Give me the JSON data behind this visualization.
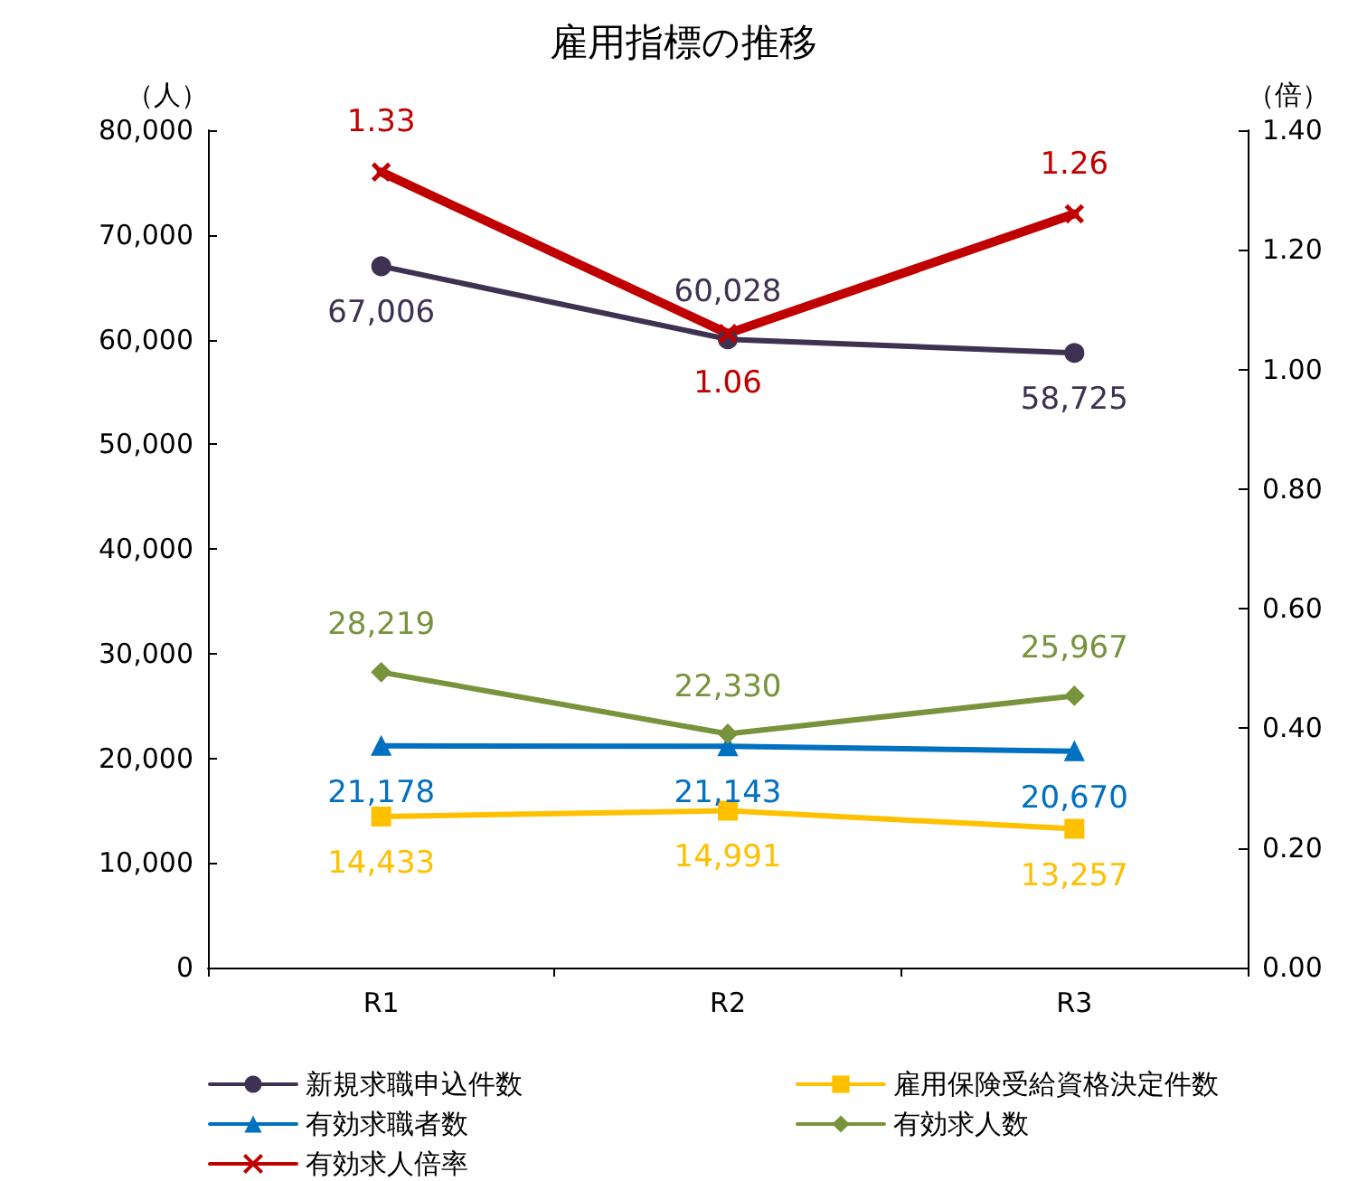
{
  "chart_data": {
    "type": "line",
    "title": "雇用指標の推移",
    "ylabel": "（人）",
    "y2label": "（倍）",
    "categories": [
      "R1",
      "R2",
      "R3"
    ],
    "series": [
      {
        "name": "新規求職申込件数",
        "color": "#3f3151",
        "values": [
          67006,
          60028,
          58725
        ],
        "value_labels": [
          "67,006",
          "60,028",
          "58,725"
        ],
        "marker": "circle"
      },
      {
        "name": "雇用保険受給資格決定件数",
        "color": "#ffc000",
        "values": [
          14433,
          14991,
          13257
        ],
        "value_labels": [
          "14,433",
          "14,991",
          "13,257"
        ],
        "marker": "square"
      },
      {
        "name": "有効求職者数",
        "color": "#0070c0",
        "values": [
          21178,
          21143,
          20670
        ],
        "value_labels": [
          "21,178",
          "21,143",
          "20,670"
        ],
        "marker": "triangle"
      },
      {
        "name": "有効求人数",
        "color": "#77933c",
        "values": [
          28219,
          22330,
          25967
        ],
        "value_labels": [
          "28,219",
          "22,330",
          "25,967"
        ],
        "marker": "diamond"
      },
      {
        "name": "有効求人倍率",
        "color": "#c00000",
        "values": [
          1.33,
          1.06,
          1.26
        ],
        "value_labels": [
          "1.33",
          "1.06",
          "1.26"
        ],
        "marker": "cross",
        "axis": "y2"
      }
    ],
    "ylim": [
      0,
      80000
    ],
    "yticks": [
      {
        "value": 0,
        "label": "0"
      },
      {
        "value": 10000,
        "label": "10,000"
      },
      {
        "value": 20000,
        "label": "20,000"
      },
      {
        "value": 30000,
        "label": "30,000"
      },
      {
        "value": 40000,
        "label": "40,000"
      },
      {
        "value": 50000,
        "label": "50,000"
      },
      {
        "value": 60000,
        "label": "60,000"
      },
      {
        "value": 70000,
        "label": "70,000"
      },
      {
        "value": 80000,
        "label": "80,000"
      }
    ],
    "y2lim": [
      0,
      1.4
    ],
    "y2ticks": [
      {
        "value": 0,
        "label": "0.00"
      },
      {
        "value": 0.2,
        "label": "0.20"
      },
      {
        "value": 0.4,
        "label": "0.40"
      },
      {
        "value": 0.6,
        "label": "0.60"
      },
      {
        "value": 0.8,
        "label": "0.80"
      },
      {
        "value": 1,
        "label": "1.00"
      },
      {
        "value": 1.2,
        "label": "1.20"
      },
      {
        "value": 1.4,
        "label": "1.40"
      }
    ],
    "grid": false,
    "legend": "bottom"
  }
}
